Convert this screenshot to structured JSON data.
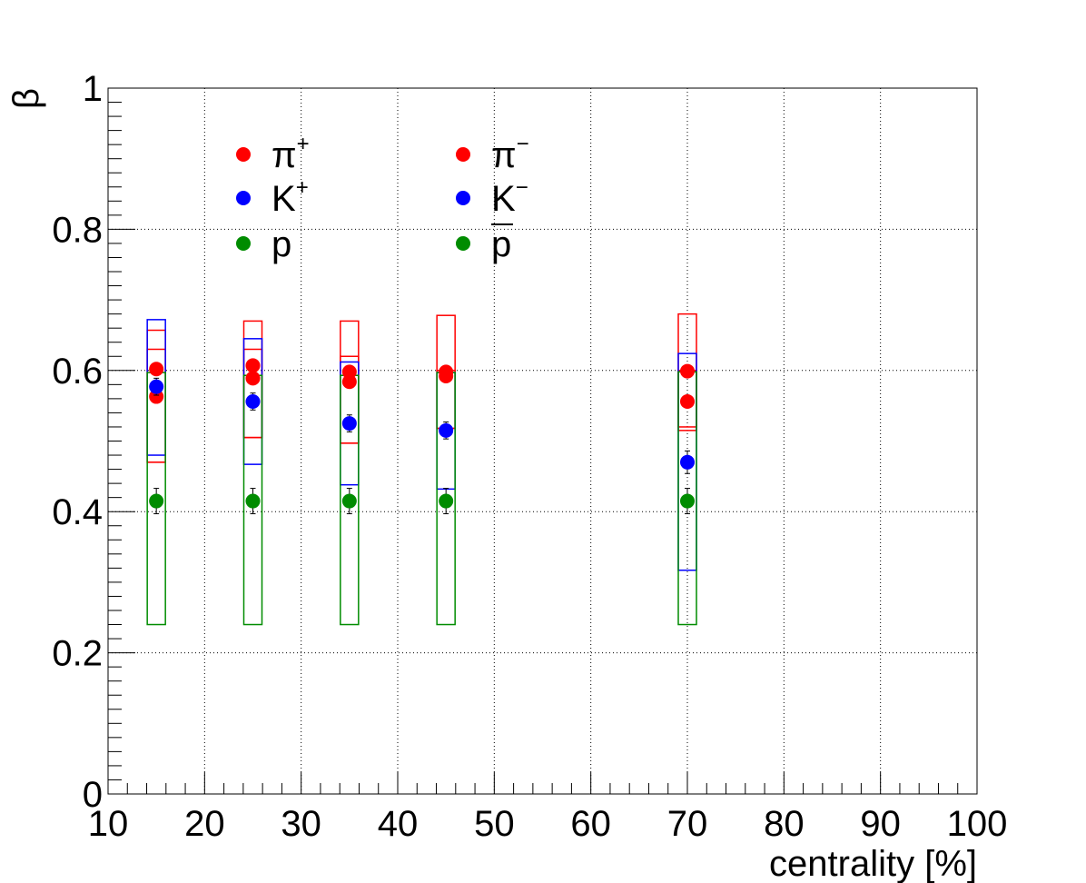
{
  "chart_data": {
    "type": "scatter",
    "xlabel": "centrality [%]",
    "ylabel": "β",
    "xlim": [
      10,
      100
    ],
    "ylim": [
      0,
      1
    ],
    "xticks": [
      10,
      20,
      30,
      40,
      50,
      60,
      70,
      80,
      90,
      100
    ],
    "yticks": [
      0,
      0.2,
      0.4,
      0.6,
      0.8,
      1
    ],
    "grid": true,
    "legend": {
      "placement": "top-left",
      "entries": [
        {
          "base": "π",
          "sup": "+",
          "bar": false,
          "color": "#ff0000"
        },
        {
          "base": "π",
          "sup": "−",
          "bar": false,
          "color": "#ff0000"
        },
        {
          "base": "K",
          "sup": "+",
          "bar": false,
          "color": "#0000ff"
        },
        {
          "base": "K",
          "sup": "−",
          "bar": false,
          "color": "#0000ff"
        },
        {
          "base": "p",
          "sup": "",
          "bar": false,
          "color": "#008c00"
        },
        {
          "base": "p",
          "sup": "",
          "bar": true,
          "color": "#008c00"
        }
      ]
    },
    "x": [
      15,
      25,
      35,
      45,
      70
    ],
    "series": [
      {
        "color": "#ff0000",
        "y": [
          0.602,
          0.607,
          0.598,
          0.598,
          0.599
        ],
        "sys_low": [
          0.47,
          0.505,
          0.497,
          0.518,
          0.52
        ],
        "sys_high": [
          0.657,
          0.67,
          0.67,
          0.678,
          0.68
        ]
      },
      {
        "color": "#ff0000",
        "y": [
          0.563,
          0.589,
          0.584,
          0.592,
          0.556
        ],
        "sys_low": [
          0.47,
          0.505,
          0.497,
          0.518,
          0.515
        ],
        "sys_high": [
          0.63,
          0.63,
          0.62,
          0.6,
          0.6
        ]
      },
      {
        "color": "#0000ff",
        "y": [
          0.577,
          0.556,
          0.525,
          0.515,
          0.47
        ],
        "stat_err": [
          0.012,
          0.012,
          0.012,
          0.012,
          0.016
        ],
        "sys_low": [
          0.48,
          0.467,
          0.438,
          0.432,
          0.317
        ],
        "sys_high": [
          0.672,
          0.645,
          0.612,
          0.597,
          0.624
        ]
      },
      {
        "color": "#008c00",
        "y": [
          0.415,
          0.415,
          0.415,
          0.415,
          0.415
        ],
        "stat_err": [
          0.018,
          0.018,
          0.018,
          0.018,
          0.018
        ],
        "sys_low": [
          0.24,
          0.24,
          0.24,
          0.24,
          0.24
        ],
        "sys_high": [
          0.597,
          0.593,
          0.593,
          0.597,
          0.598
        ]
      }
    ]
  }
}
